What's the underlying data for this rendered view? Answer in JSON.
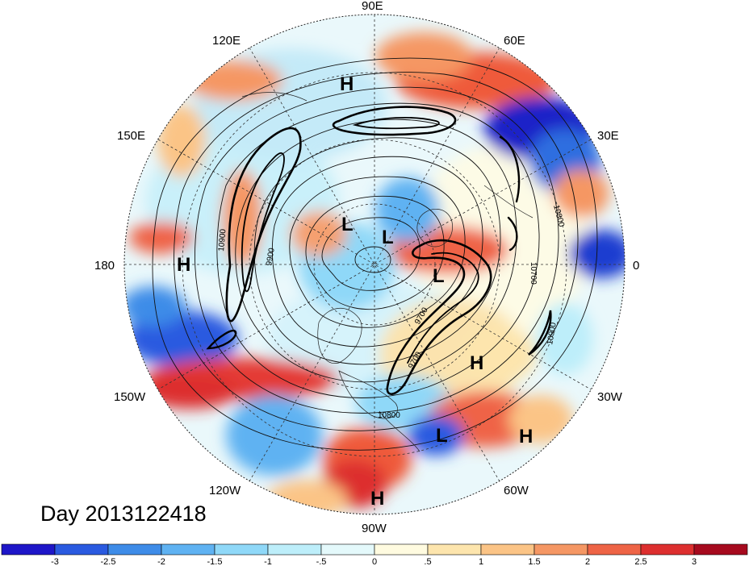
{
  "map": {
    "projection": "north-polar-stereographic",
    "date_label": "Day 2013122418",
    "longitude_labels": [
      {
        "text": "90E",
        "lon": 90
      },
      {
        "text": "60E",
        "lon": 60
      },
      {
        "text": "30E",
        "lon": 30
      },
      {
        "text": "0",
        "lon": 0
      },
      {
        "text": "30W",
        "lon": -30
      },
      {
        "text": "60W",
        "lon": -60
      },
      {
        "text": "90W",
        "lon": -90
      },
      {
        "text": "120W",
        "lon": -120
      },
      {
        "text": "150W",
        "lon": -150
      },
      {
        "text": "180",
        "lon": 180
      },
      {
        "text": "150E",
        "lon": 150
      },
      {
        "text": "120E",
        "lon": 120
      }
    ],
    "pressure_centers": [
      {
        "text": "H",
        "kind": "high",
        "region": "east-siberia"
      },
      {
        "text": "L",
        "kind": "low",
        "region": "arctic-1"
      },
      {
        "text": "L",
        "kind": "low",
        "region": "arctic-2"
      },
      {
        "text": "L",
        "kind": "low",
        "region": "greenland"
      },
      {
        "text": "H",
        "kind": "high",
        "region": "bering"
      },
      {
        "text": "H",
        "kind": "high",
        "region": "mid-atlantic"
      },
      {
        "text": "L",
        "kind": "low",
        "region": "caribbean"
      },
      {
        "text": "H",
        "kind": "high",
        "region": "subtropical-atlantic"
      },
      {
        "text": "H",
        "kind": "high",
        "region": "central-america"
      }
    ],
    "contour_labels": [
      "10900",
      "9900",
      "10800",
      "10700",
      "10900",
      "9700",
      "9700",
      "10800",
      "10900",
      "10800"
    ],
    "colors": {
      "neg_strong": "#1010c8",
      "neg": "#3a7fe6",
      "neg_light": "#b4ecf8",
      "neutral": "#fdfbe6",
      "pos_light": "#fbd9a0",
      "pos": "#ef5a3a",
      "pos_strong": "#a8081a"
    }
  },
  "colorbar": {
    "colors": [
      "#1e16c8",
      "#2a5ae0",
      "#3e8ce8",
      "#5fb2f2",
      "#8fd8f8",
      "#bdeefa",
      "#e4f9fb",
      "#fffbe0",
      "#fde5ad",
      "#fbc486",
      "#f59764",
      "#ee6446",
      "#dd2f2f",
      "#a60a1e"
    ],
    "tick_labels": [
      "-3",
      "-2.5",
      "-2",
      "-1.5",
      "-1",
      "-.5",
      "0",
      ".5",
      "1",
      "1.5",
      "2",
      "2.5",
      "3"
    ]
  }
}
